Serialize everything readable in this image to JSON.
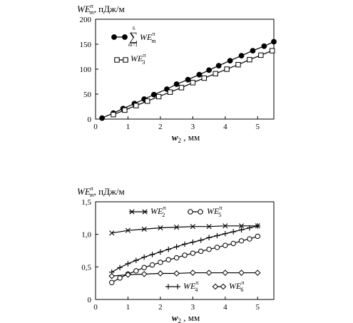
{
  "chart_data": [
    {
      "type": "line",
      "ylabel": "WE",
      "ylabel_sup": "π",
      "ylabel_sub": "m",
      "ylabel_unit": ", пДж/м",
      "xlabel": "w",
      "xlabel_sub": "2",
      "xlabel_unit": " , мм",
      "xlim": [
        0,
        5.5
      ],
      "ylim": [
        0,
        200
      ],
      "xticks": [
        "0",
        "1",
        "2",
        "3",
        "4",
        "5"
      ],
      "xtick_values": [
        0,
        1,
        2,
        3,
        4,
        5
      ],
      "yticks": [
        "0",
        "50",
        "100",
        "150",
        "200"
      ],
      "ytick_values": [
        0,
        50,
        100,
        150,
        200
      ],
      "legend_position": "top-left",
      "series": [
        {
          "label_sum_top": "6",
          "label_sum_bottom": "m=1",
          "label_main": "WE",
          "label_sup": "π",
          "label_sub": "m",
          "marker": "filled-circle",
          "x": [
            0.2,
            0.55,
            0.85,
            1.2,
            1.5,
            1.8,
            2.2,
            2.5,
            2.85,
            3.2,
            3.5,
            3.8,
            4.15,
            4.5,
            4.85,
            5.2,
            5.5
          ],
          "y": [
            2,
            12,
            21,
            31,
            40,
            49,
            60,
            70,
            79,
            89,
            98,
            107,
            117,
            127,
            137,
            146,
            155
          ]
        },
        {
          "label_main": "WE",
          "label_sup": "π",
          "label_sub": "3",
          "marker": "open-square",
          "x": [
            0.55,
            0.9,
            1.25,
            1.6,
            1.95,
            2.3,
            2.65,
            3.0,
            3.35,
            3.7,
            4.05,
            4.4,
            4.75,
            5.1,
            5.45
          ],
          "y": [
            9,
            18,
            27,
            36,
            45,
            54,
            63,
            73,
            82,
            91,
            100,
            109,
            119,
            128,
            137
          ]
        }
      ]
    },
    {
      "type": "line",
      "ylabel": "WE",
      "ylabel_sup": "π",
      "ylabel_sub": "m",
      "ylabel_unit": ", пДж/м",
      "xlabel": "w",
      "xlabel_sub": "2",
      "xlabel_unit": " , мм",
      "xlim": [
        0,
        5.5
      ],
      "ylim": [
        0,
        1.5
      ],
      "xticks": [
        "0",
        "1",
        "2",
        "3",
        "4",
        "5"
      ],
      "xtick_values": [
        0,
        1,
        2,
        3,
        4,
        5
      ],
      "yticks": [
        "0",
        "0,5",
        "1,0",
        "1,5"
      ],
      "ytick_values": [
        0,
        0.5,
        1.0,
        1.5
      ],
      "legend_position": "top and bottom",
      "series": [
        {
          "label_main": "WE",
          "label_sup": "π",
          "label_sub": "2",
          "marker": "x",
          "x": [
            0.5,
            1.0,
            1.5,
            2.0,
            2.5,
            3.0,
            3.5,
            4.0,
            4.5,
            5.0
          ],
          "y": [
            1.02,
            1.06,
            1.08,
            1.1,
            1.11,
            1.12,
            1.12,
            1.13,
            1.13,
            1.13
          ]
        },
        {
          "label_main": "WE",
          "label_sup": "π",
          "label_sub": "5",
          "marker": "open-circle",
          "x": [
            0.5,
            0.75,
            1.0,
            1.25,
            1.5,
            1.75,
            2.0,
            2.25,
            2.5,
            2.75,
            3.0,
            3.25,
            3.5,
            3.75,
            4.0,
            4.25,
            4.5,
            4.75,
            5.0
          ],
          "y": [
            0.26,
            0.33,
            0.39,
            0.44,
            0.49,
            0.53,
            0.57,
            0.61,
            0.64,
            0.68,
            0.71,
            0.74,
            0.77,
            0.8,
            0.83,
            0.86,
            0.9,
            0.93,
            0.97
          ]
        },
        {
          "label_main": "WE",
          "label_sup": "π",
          "label_sub": "4",
          "marker": "plus",
          "x": [
            0.5,
            0.75,
            1.0,
            1.25,
            1.5,
            1.75,
            2.0,
            2.25,
            2.5,
            2.75,
            3.0,
            3.25,
            3.5,
            3.75,
            4.0,
            4.25,
            4.5,
            4.75,
            5.0
          ],
          "y": [
            0.42,
            0.49,
            0.55,
            0.6,
            0.65,
            0.69,
            0.73,
            0.77,
            0.81,
            0.85,
            0.88,
            0.91,
            0.95,
            0.98,
            1.01,
            1.04,
            1.07,
            1.1,
            1.13
          ]
        },
        {
          "label_main": "WE",
          "label_sup": "π",
          "label_sub": "6",
          "marker": "open-diamond",
          "x": [
            0.5,
            1.0,
            1.5,
            2.0,
            2.5,
            3.0,
            3.5,
            4.0,
            4.5,
            5.0
          ],
          "y": [
            0.36,
            0.38,
            0.39,
            0.4,
            0.4,
            0.41,
            0.41,
            0.41,
            0.41,
            0.41
          ]
        }
      ]
    }
  ]
}
